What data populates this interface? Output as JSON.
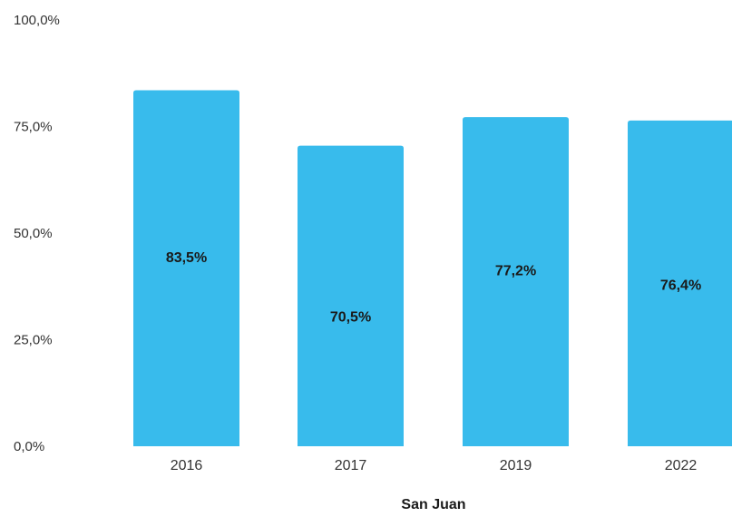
{
  "chart_data": {
    "type": "bar",
    "categories": [
      "2016",
      "2017",
      "2019",
      "2022"
    ],
    "values": [
      83.5,
      70.5,
      77.2,
      76.4
    ],
    "value_labels": [
      "83,5%",
      "70,5%",
      "77,2%",
      "76,4%"
    ],
    "xlabel": "San Juan",
    "ylabel": "",
    "ylim": [
      0,
      100
    ],
    "yticks": [
      0,
      25,
      50,
      75,
      100
    ],
    "ytick_labels": [
      "0,0%",
      "25,0%",
      "50,0%",
      "75,0%",
      "100,0%"
    ],
    "grid": false,
    "legend": "none",
    "bar_color": "#38bbec"
  }
}
